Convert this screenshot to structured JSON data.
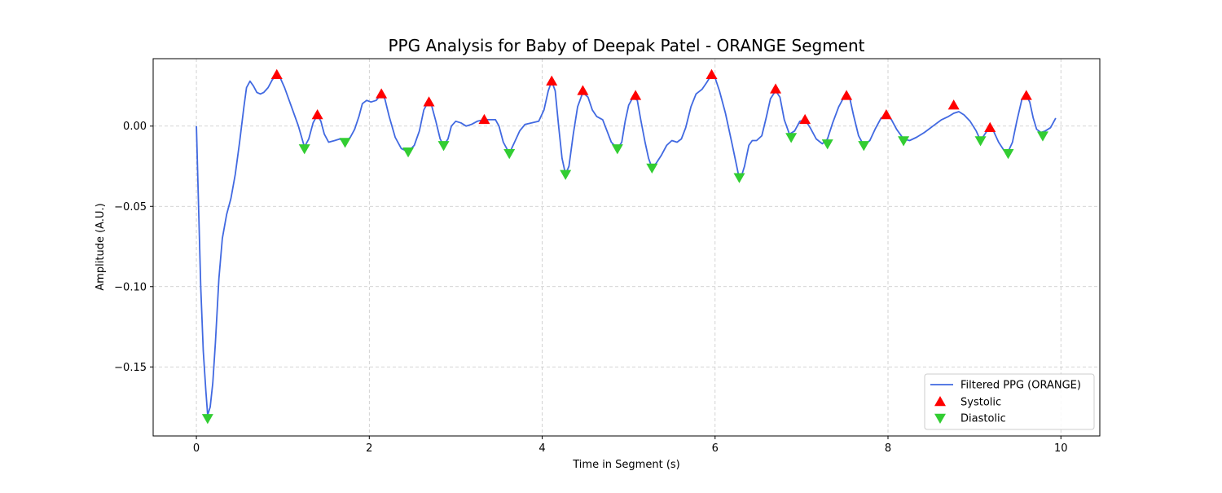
{
  "chart_data": {
    "type": "line",
    "title": "PPG Analysis for Baby of Deepak Patel - ORANGE Segment",
    "xlabel": "Time in Segment (s)",
    "ylabel": "Amplitude (A.U.)",
    "xlim": [
      -0.5,
      10.45
    ],
    "ylim": [
      -0.193,
      0.042
    ],
    "x_ticks": [
      0,
      2,
      4,
      6,
      8,
      10
    ],
    "x_tick_labels": [
      "0",
      "2",
      "4",
      "6",
      "8",
      "10"
    ],
    "y_ticks": [
      0.0,
      -0.05,
      -0.1,
      -0.15
    ],
    "y_tick_labels": [
      "0.00",
      "−0.05",
      "−0.10",
      "−0.15"
    ],
    "grid": true,
    "legend_position": "bottom-right",
    "series": [
      {
        "name": "Filtered PPG (ORANGE)",
        "color": "#4169e1",
        "points": [
          [
            0.0,
            0.0
          ],
          [
            0.02,
            -0.04
          ],
          [
            0.05,
            -0.1
          ],
          [
            0.08,
            -0.14
          ],
          [
            0.11,
            -0.165
          ],
          [
            0.13,
            -0.18
          ],
          [
            0.16,
            -0.175
          ],
          [
            0.19,
            -0.16
          ],
          [
            0.22,
            -0.135
          ],
          [
            0.26,
            -0.095
          ],
          [
            0.3,
            -0.07
          ],
          [
            0.35,
            -0.055
          ],
          [
            0.4,
            -0.045
          ],
          [
            0.45,
            -0.03
          ],
          [
            0.5,
            -0.01
          ],
          [
            0.55,
            0.012
          ],
          [
            0.58,
            0.024
          ],
          [
            0.62,
            0.028
          ],
          [
            0.66,
            0.025
          ],
          [
            0.7,
            0.021
          ],
          [
            0.74,
            0.02
          ],
          [
            0.78,
            0.021
          ],
          [
            0.83,
            0.024
          ],
          [
            0.88,
            0.029
          ],
          [
            0.93,
            0.032
          ],
          [
            0.97,
            0.03
          ],
          [
            1.02,
            0.024
          ],
          [
            1.1,
            0.012
          ],
          [
            1.18,
            0.0
          ],
          [
            1.25,
            -0.013
          ],
          [
            1.3,
            -0.008
          ],
          [
            1.35,
            0.002
          ],
          [
            1.4,
            0.007
          ],
          [
            1.44,
            0.003
          ],
          [
            1.48,
            -0.005
          ],
          [
            1.53,
            -0.01
          ],
          [
            1.6,
            -0.009
          ],
          [
            1.66,
            -0.008
          ],
          [
            1.72,
            -0.01
          ],
          [
            1.78,
            -0.007
          ],
          [
            1.83,
            -0.002
          ],
          [
            1.88,
            0.006
          ],
          [
            1.92,
            0.014
          ],
          [
            1.97,
            0.016
          ],
          [
            2.02,
            0.015
          ],
          [
            2.08,
            0.016
          ],
          [
            2.14,
            0.02
          ],
          [
            2.18,
            0.017
          ],
          [
            2.23,
            0.006
          ],
          [
            2.3,
            -0.007
          ],
          [
            2.37,
            -0.014
          ],
          [
            2.45,
            -0.016
          ],
          [
            2.52,
            -0.012
          ],
          [
            2.58,
            -0.003
          ],
          [
            2.63,
            0.01
          ],
          [
            2.68,
            0.015
          ],
          [
            2.72,
            0.013
          ],
          [
            2.77,
            0.003
          ],
          [
            2.82,
            -0.008
          ],
          [
            2.86,
            -0.012
          ],
          [
            2.91,
            -0.008
          ],
          [
            2.95,
            0.0
          ],
          [
            3.0,
            0.003
          ],
          [
            3.06,
            0.002
          ],
          [
            3.12,
            0.0
          ],
          [
            3.18,
            0.001
          ],
          [
            3.25,
            0.003
          ],
          [
            3.33,
            0.004
          ],
          [
            3.4,
            0.004
          ],
          [
            3.46,
            0.004
          ],
          [
            3.5,
            0.0
          ],
          [
            3.55,
            -0.01
          ],
          [
            3.62,
            -0.017
          ],
          [
            3.68,
            -0.01
          ],
          [
            3.74,
            -0.003
          ],
          [
            3.8,
            0.001
          ],
          [
            3.88,
            0.002
          ],
          [
            3.96,
            0.003
          ],
          [
            4.02,
            0.01
          ],
          [
            4.07,
            0.022
          ],
          [
            4.11,
            0.028
          ],
          [
            4.15,
            0.022
          ],
          [
            4.19,
            0.0
          ],
          [
            4.23,
            -0.02
          ],
          [
            4.27,
            -0.03
          ],
          [
            4.31,
            -0.025
          ],
          [
            4.36,
            -0.005
          ],
          [
            4.41,
            0.012
          ],
          [
            4.47,
            0.021
          ],
          [
            4.53,
            0.018
          ],
          [
            4.58,
            0.01
          ],
          [
            4.63,
            0.006
          ],
          [
            4.7,
            0.004
          ],
          [
            4.75,
            -0.003
          ],
          [
            4.8,
            -0.01
          ],
          [
            4.87,
            -0.014
          ],
          [
            4.92,
            -0.01
          ],
          [
            4.96,
            0.003
          ],
          [
            5.0,
            0.013
          ],
          [
            5.05,
            0.018
          ],
          [
            5.1,
            0.016
          ],
          [
            5.14,
            0.004
          ],
          [
            5.19,
            -0.01
          ],
          [
            5.23,
            -0.02
          ],
          [
            5.27,
            -0.026
          ],
          [
            5.32,
            -0.023
          ],
          [
            5.38,
            -0.018
          ],
          [
            5.44,
            -0.012
          ],
          [
            5.5,
            -0.009
          ],
          [
            5.56,
            -0.01
          ],
          [
            5.61,
            -0.008
          ],
          [
            5.66,
            -0.001
          ],
          [
            5.72,
            0.012
          ],
          [
            5.78,
            0.02
          ],
          [
            5.85,
            0.023
          ],
          [
            5.9,
            0.027
          ],
          [
            5.96,
            0.032
          ],
          [
            6.0,
            0.03
          ],
          [
            6.05,
            0.022
          ],
          [
            6.12,
            0.008
          ],
          [
            6.2,
            -0.012
          ],
          [
            6.27,
            -0.03
          ],
          [
            6.3,
            -0.032
          ],
          [
            6.34,
            -0.025
          ],
          [
            6.39,
            -0.012
          ],
          [
            6.43,
            -0.009
          ],
          [
            6.48,
            -0.009
          ],
          [
            6.54,
            -0.006
          ],
          [
            6.59,
            0.005
          ],
          [
            6.64,
            0.017
          ],
          [
            6.7,
            0.022
          ],
          [
            6.75,
            0.018
          ],
          [
            6.8,
            0.004
          ],
          [
            6.86,
            -0.005
          ],
          [
            6.92,
            -0.003
          ],
          [
            6.98,
            0.003
          ],
          [
            7.04,
            0.004
          ],
          [
            7.1,
            -0.001
          ],
          [
            7.17,
            -0.008
          ],
          [
            7.24,
            -0.011
          ],
          [
            7.3,
            -0.008
          ],
          [
            7.36,
            0.002
          ],
          [
            7.43,
            0.012
          ],
          [
            7.5,
            0.019
          ],
          [
            7.56,
            0.017
          ],
          [
            7.6,
            0.007
          ],
          [
            7.66,
            -0.006
          ],
          [
            7.72,
            -0.012
          ],
          [
            7.79,
            -0.009
          ],
          [
            7.85,
            -0.002
          ],
          [
            7.92,
            0.005
          ],
          [
            7.98,
            0.007
          ],
          [
            8.04,
            0.004
          ],
          [
            8.1,
            -0.002
          ],
          [
            8.18,
            -0.008
          ],
          [
            8.25,
            -0.009
          ],
          [
            8.33,
            -0.007
          ],
          [
            8.42,
            -0.004
          ],
          [
            8.52,
            0.0
          ],
          [
            8.62,
            0.004
          ],
          [
            8.7,
            0.006
          ],
          [
            8.76,
            0.008
          ],
          [
            8.82,
            0.009
          ],
          [
            8.88,
            0.007
          ],
          [
            8.95,
            0.003
          ],
          [
            9.02,
            -0.003
          ],
          [
            9.07,
            -0.009
          ],
          [
            9.12,
            -0.005
          ],
          [
            9.17,
            -0.001
          ],
          [
            9.22,
            -0.003
          ],
          [
            9.28,
            -0.01
          ],
          [
            9.34,
            -0.015
          ],
          [
            9.39,
            -0.016
          ],
          [
            9.44,
            -0.01
          ],
          [
            9.49,
            0.003
          ],
          [
            9.55,
            0.017
          ],
          [
            9.6,
            0.019
          ],
          [
            9.64,
            0.015
          ],
          [
            9.68,
            0.005
          ],
          [
            9.72,
            -0.002
          ],
          [
            9.77,
            -0.004
          ],
          [
            9.82,
            -0.003
          ],
          [
            9.88,
            -0.001
          ],
          [
            9.94,
            0.005
          ]
        ]
      },
      {
        "name": "Systolic",
        "color": "#ff0000",
        "marker": "triangle-up",
        "points": [
          [
            0.93,
            0.032
          ],
          [
            1.4,
            0.007
          ],
          [
            2.14,
            0.02
          ],
          [
            2.69,
            0.015
          ],
          [
            3.33,
            0.004
          ],
          [
            4.11,
            0.028
          ],
          [
            4.47,
            0.022
          ],
          [
            5.08,
            0.019
          ],
          [
            5.96,
            0.032
          ],
          [
            6.7,
            0.023
          ],
          [
            7.04,
            0.004
          ],
          [
            7.52,
            0.019
          ],
          [
            7.98,
            0.007
          ],
          [
            8.76,
            0.013
          ],
          [
            9.18,
            -0.001
          ],
          [
            9.6,
            0.019
          ]
        ]
      },
      {
        "name": "Diastolic",
        "color": "#32cd32",
        "marker": "triangle-down",
        "points": [
          [
            0.13,
            -0.182
          ],
          [
            1.25,
            -0.014
          ],
          [
            1.72,
            -0.01
          ],
          [
            2.45,
            -0.016
          ],
          [
            2.86,
            -0.012
          ],
          [
            3.62,
            -0.017
          ],
          [
            4.27,
            -0.03
          ],
          [
            4.87,
            -0.014
          ],
          [
            5.27,
            -0.026
          ],
          [
            6.28,
            -0.032
          ],
          [
            6.88,
            -0.007
          ],
          [
            7.3,
            -0.011
          ],
          [
            7.72,
            -0.012
          ],
          [
            8.18,
            -0.009
          ],
          [
            9.07,
            -0.009
          ],
          [
            9.39,
            -0.017
          ],
          [
            9.79,
            -0.006
          ]
        ]
      }
    ]
  }
}
